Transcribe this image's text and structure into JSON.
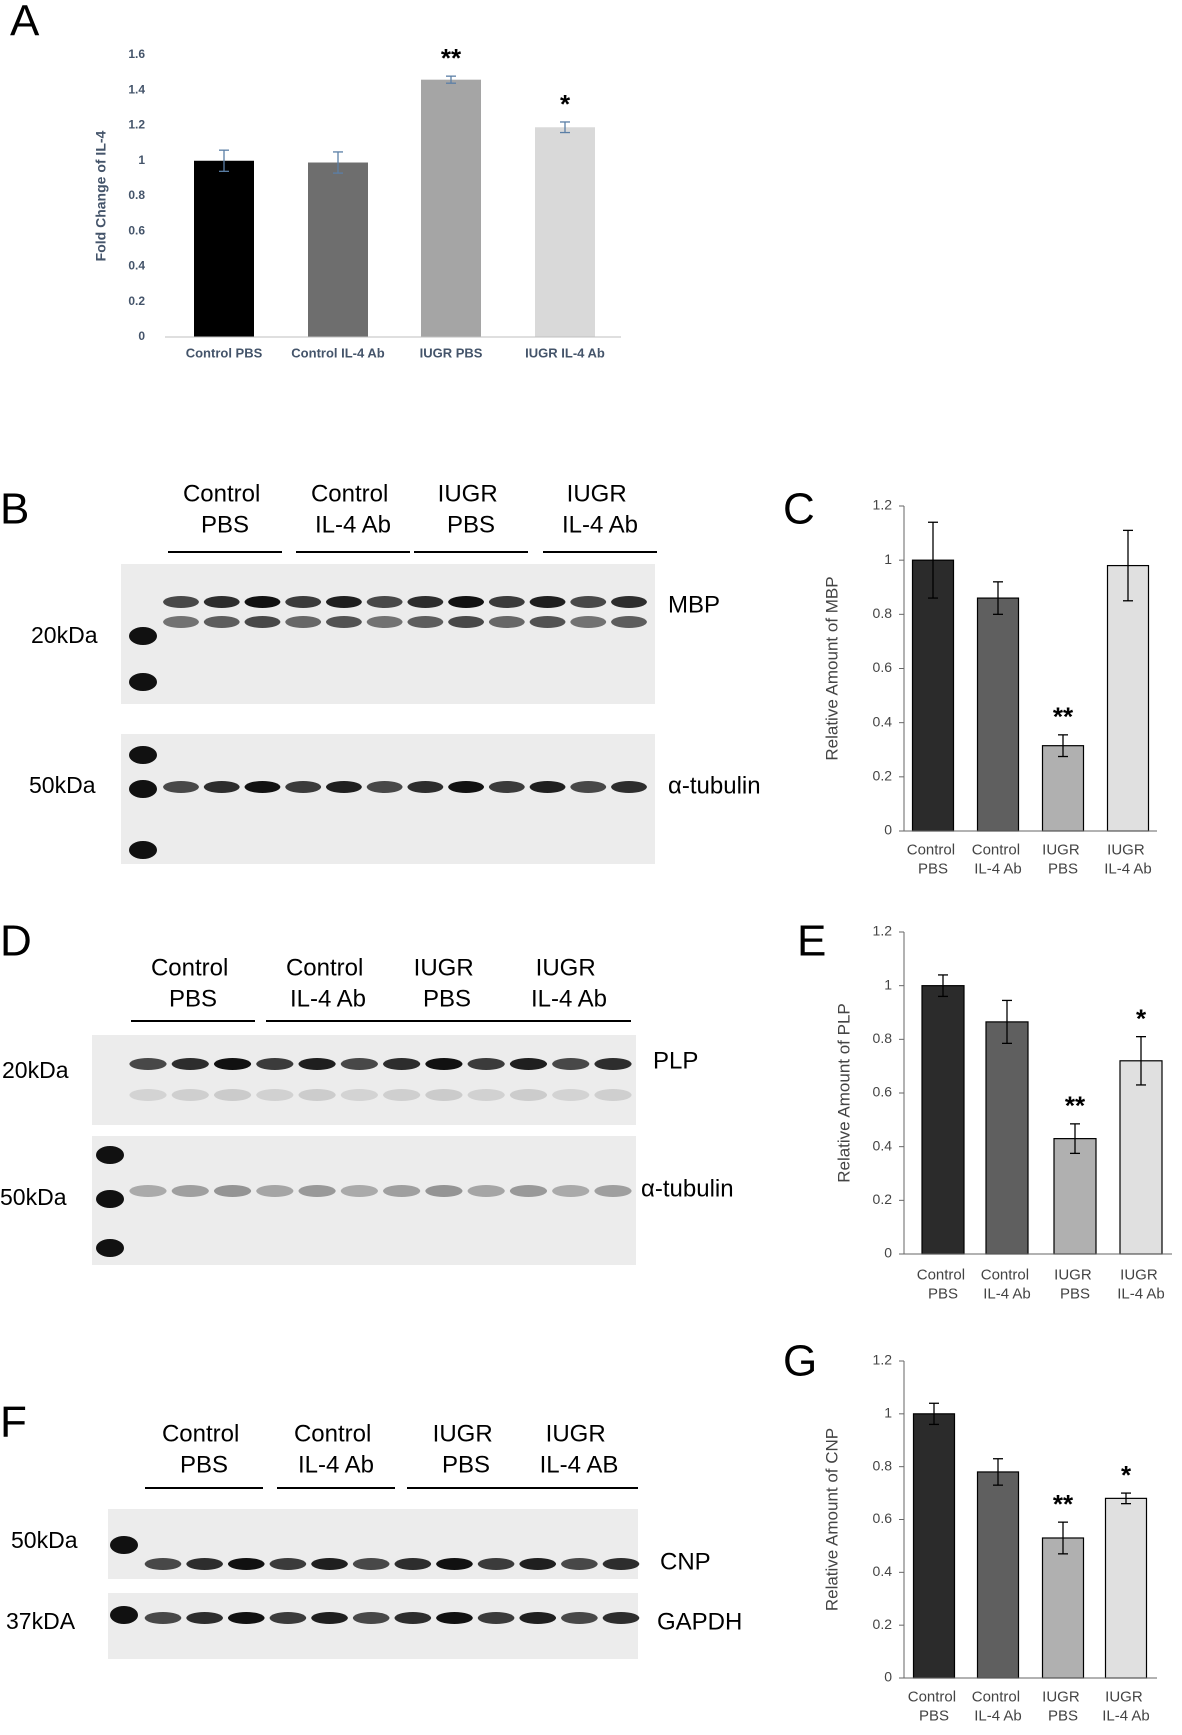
{
  "chart_data": [
    {
      "type": "bar",
      "panel": "A",
      "y_label": "Fold Change of IL-4",
      "categories": [
        "Control PBS",
        "Control IL-4 Ab",
        "IUGR PBS",
        "IUGR IL-4 Ab"
      ],
      "values": [
        1.0,
        0.99,
        1.46,
        1.19
      ],
      "errors": [
        0.06,
        0.06,
        0.02,
        0.03
      ],
      "value_annotations": [
        null,
        null,
        "**",
        "*"
      ],
      "colors": [
        "#000000",
        "#6e6e6e",
        "#a5a5a5",
        "#d9d9d9"
      ],
      "ylim": [
        0,
        1.6
      ],
      "yticks": [
        0,
        0.2,
        0.4,
        0.6,
        0.8,
        1,
        1.2,
        1.4,
        1.6
      ]
    },
    {
      "type": "bar",
      "panel": "C",
      "y_label": "Relative Amount of MBP",
      "categories": [
        "Control PBS",
        "Control IL-4 Ab",
        "IUGR PBS",
        "IUGR IL-4 Ab"
      ],
      "values": [
        1.0,
        0.86,
        0.315,
        0.98
      ],
      "errors": [
        0.14,
        0.06,
        0.04,
        0.13
      ],
      "value_annotations": [
        null,
        null,
        "**",
        null
      ],
      "colors": [
        "#2b2b2b",
        "#5f5f5f",
        "#b0b0b0",
        "#e0e0e0"
      ],
      "ylim": [
        0,
        1.2
      ],
      "yticks": [
        0,
        0.2,
        0.4,
        0.6,
        0.8,
        1,
        1.2
      ]
    },
    {
      "type": "bar",
      "panel": "E",
      "y_label": "Relative Amount of PLP",
      "categories": [
        "Control PBS",
        "Control IL-4 Ab",
        "IUGR PBS",
        "IUGR IL-4 Ab"
      ],
      "values": [
        1.0,
        0.865,
        0.43,
        0.72
      ],
      "errors": [
        0.04,
        0.08,
        0.055,
        0.09
      ],
      "value_annotations": [
        null,
        null,
        "**",
        "*"
      ],
      "colors": [
        "#2b2b2b",
        "#5f5f5f",
        "#b0b0b0",
        "#e0e0e0"
      ],
      "ylim": [
        0,
        1.2
      ],
      "yticks": [
        0,
        0.2,
        0.4,
        0.6,
        0.8,
        1,
        1.2
      ]
    },
    {
      "type": "bar",
      "panel": "G",
      "y_label": "Relative Amount of CNP",
      "categories": [
        "Control PBS",
        "Control IL-4 Ab",
        "IUGR PBS",
        "IUGR IL-4 Ab"
      ],
      "values": [
        1.0,
        0.78,
        0.53,
        0.68
      ],
      "errors": [
        0.04,
        0.05,
        0.06,
        0.02
      ],
      "value_annotations": [
        null,
        null,
        "**",
        "*"
      ],
      "colors": [
        "#2b2b2b",
        "#5f5f5f",
        "#b0b0b0",
        "#e0e0e0"
      ],
      "ylim": [
        0,
        1.2
      ],
      "yticks": [
        0,
        0.2,
        0.4,
        0.6,
        0.8,
        1,
        1.2
      ]
    }
  ],
  "blots": [
    {
      "panel": "B",
      "groups": [
        "Control PBS",
        "Control IL-4 Ab",
        "IUGR PBS",
        "IUGR IL-4 Ab"
      ],
      "markers": [
        "20kDa",
        "50kDa"
      ],
      "proteins": [
        "MBP",
        "α-tubulin"
      ]
    },
    {
      "panel": "D",
      "groups": [
        "Control PBS",
        "Control IL-4 Ab",
        "IUGR PBS",
        "IUGR IL-4 Ab"
      ],
      "markers": [
        "20kDa",
        "50kDa"
      ],
      "proteins": [
        "PLP",
        "α-tubulin"
      ]
    },
    {
      "panel": "F",
      "groups": [
        "Control PBS",
        "Control IL-4 Ab",
        "IUGR PBS",
        "IUGR IL-4 AB"
      ],
      "markers": [
        "50kDa",
        "37kDA"
      ],
      "proteins": [
        "CNP",
        "GAPDH"
      ]
    }
  ]
}
